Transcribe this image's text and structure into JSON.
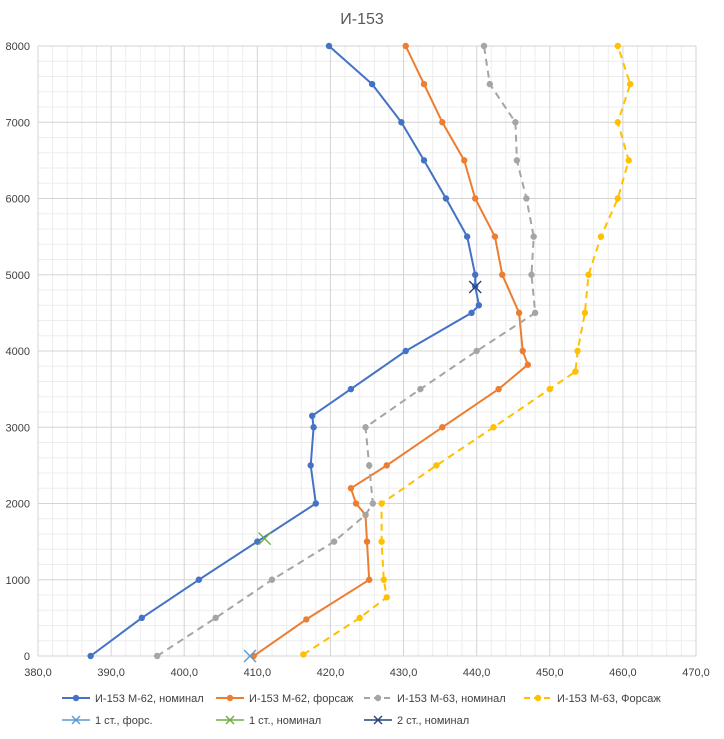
{
  "chart_data": {
    "type": "scatter",
    "title": "И-153",
    "xlabel": "",
    "ylabel": "",
    "xlim": [
      380,
      470
    ],
    "ylim": [
      0,
      8000
    ],
    "x_major_ticks": [
      380,
      390,
      400,
      410,
      420,
      430,
      440,
      450,
      460,
      470
    ],
    "x_tick_labels": [
      "380,0",
      "390,0",
      "400,0",
      "410,0",
      "420,0",
      "430,0",
      "440,0",
      "450,0",
      "460,0",
      "470,0"
    ],
    "y_major_ticks": [
      0,
      1000,
      2000,
      3000,
      4000,
      5000,
      6000,
      7000,
      8000
    ],
    "y_tick_labels": [
      "0",
      "1000",
      "2000",
      "3000",
      "4000",
      "5000",
      "6000",
      "7000",
      "8000"
    ],
    "grid": true,
    "legend_position": "bottom",
    "series": [
      {
        "name": "И-153 М-62, номинал",
        "color": "#4472C4",
        "line": "solid",
        "marker": "circle",
        "points": [
          [
            387.2,
            0
          ],
          [
            394.2,
            500
          ],
          [
            402.0,
            1000
          ],
          [
            410.0,
            1500
          ],
          [
            418.0,
            2000
          ],
          [
            417.3,
            2500
          ],
          [
            417.7,
            3000
          ],
          [
            417.5,
            3150
          ],
          [
            422.8,
            3500
          ],
          [
            430.3,
            4000
          ],
          [
            439.3,
            4500
          ],
          [
            440.3,
            4600
          ],
          [
            439.8,
            4850
          ],
          [
            439.8,
            5000
          ],
          [
            438.7,
            5500
          ],
          [
            435.8,
            6000
          ],
          [
            432.8,
            6500
          ],
          [
            429.7,
            7000
          ],
          [
            425.7,
            7500
          ],
          [
            419.8,
            8000
          ]
        ]
      },
      {
        "name": "И-153 М-62, форсаж",
        "color": "#ED7D31",
        "line": "solid",
        "marker": "circle",
        "points": [
          [
            409.5,
            0
          ],
          [
            416.7,
            480
          ],
          [
            425.3,
            1000
          ],
          [
            425.0,
            1500
          ],
          [
            424.8,
            1850
          ],
          [
            423.5,
            2000
          ],
          [
            422.8,
            2200
          ],
          [
            427.7,
            2500
          ],
          [
            435.3,
            3000
          ],
          [
            443.0,
            3500
          ],
          [
            447.0,
            3820
          ],
          [
            446.3,
            4000
          ],
          [
            445.8,
            4500
          ],
          [
            443.5,
            5000
          ],
          [
            442.5,
            5500
          ],
          [
            439.8,
            6000
          ],
          [
            438.3,
            6500
          ],
          [
            435.3,
            7000
          ],
          [
            432.8,
            7500
          ],
          [
            430.3,
            8000
          ]
        ]
      },
      {
        "name": "И-153 М-63, номинал",
        "color": "#A5A5A5",
        "line": "dashed",
        "marker": "circle",
        "points": [
          [
            396.3,
            0
          ],
          [
            404.3,
            500
          ],
          [
            412.0,
            1000
          ],
          [
            420.5,
            1500
          ],
          [
            424.8,
            1850
          ],
          [
            425.8,
            2000
          ],
          [
            425.3,
            2500
          ],
          [
            424.8,
            3000
          ],
          [
            432.3,
            3500
          ],
          [
            440.0,
            4000
          ],
          [
            448.0,
            4500
          ],
          [
            447.5,
            5000
          ],
          [
            447.8,
            5500
          ],
          [
            446.8,
            6000
          ],
          [
            445.5,
            6500
          ],
          [
            445.3,
            7000
          ],
          [
            441.8,
            7500
          ],
          [
            441.0,
            8000
          ]
        ]
      },
      {
        "name": "И-153 М-63, Форсаж",
        "color": "#FFC000",
        "line": "dashed",
        "marker": "circle",
        "points": [
          [
            416.3,
            20
          ],
          [
            424.0,
            500
          ],
          [
            427.7,
            770
          ],
          [
            427.3,
            1000
          ],
          [
            427.0,
            1500
          ],
          [
            427.0,
            2000
          ],
          [
            434.5,
            2500
          ],
          [
            442.3,
            3000
          ],
          [
            450.0,
            3500
          ],
          [
            453.5,
            3730
          ],
          [
            453.8,
            4000
          ],
          [
            454.8,
            4500
          ],
          [
            455.3,
            5000
          ],
          [
            457.0,
            5500
          ],
          [
            459.3,
            6000
          ],
          [
            460.8,
            6500
          ],
          [
            459.3,
            7000
          ],
          [
            461.0,
            7500
          ],
          [
            459.3,
            8000
          ]
        ]
      }
    ],
    "markers": [
      {
        "name": "1 ст., форс.",
        "color": "#5B9BD5",
        "symbol": "x",
        "points": [
          [
            409.0,
            0
          ]
        ]
      },
      {
        "name": "1 ст., номинал",
        "color": "#70AD47",
        "symbol": "x",
        "points": [
          [
            411.0,
            1540
          ]
        ]
      },
      {
        "name": "2 ст., номинал",
        "color": "#264478",
        "symbol": "x",
        "points": [
          [
            439.8,
            4840
          ]
        ]
      }
    ]
  }
}
